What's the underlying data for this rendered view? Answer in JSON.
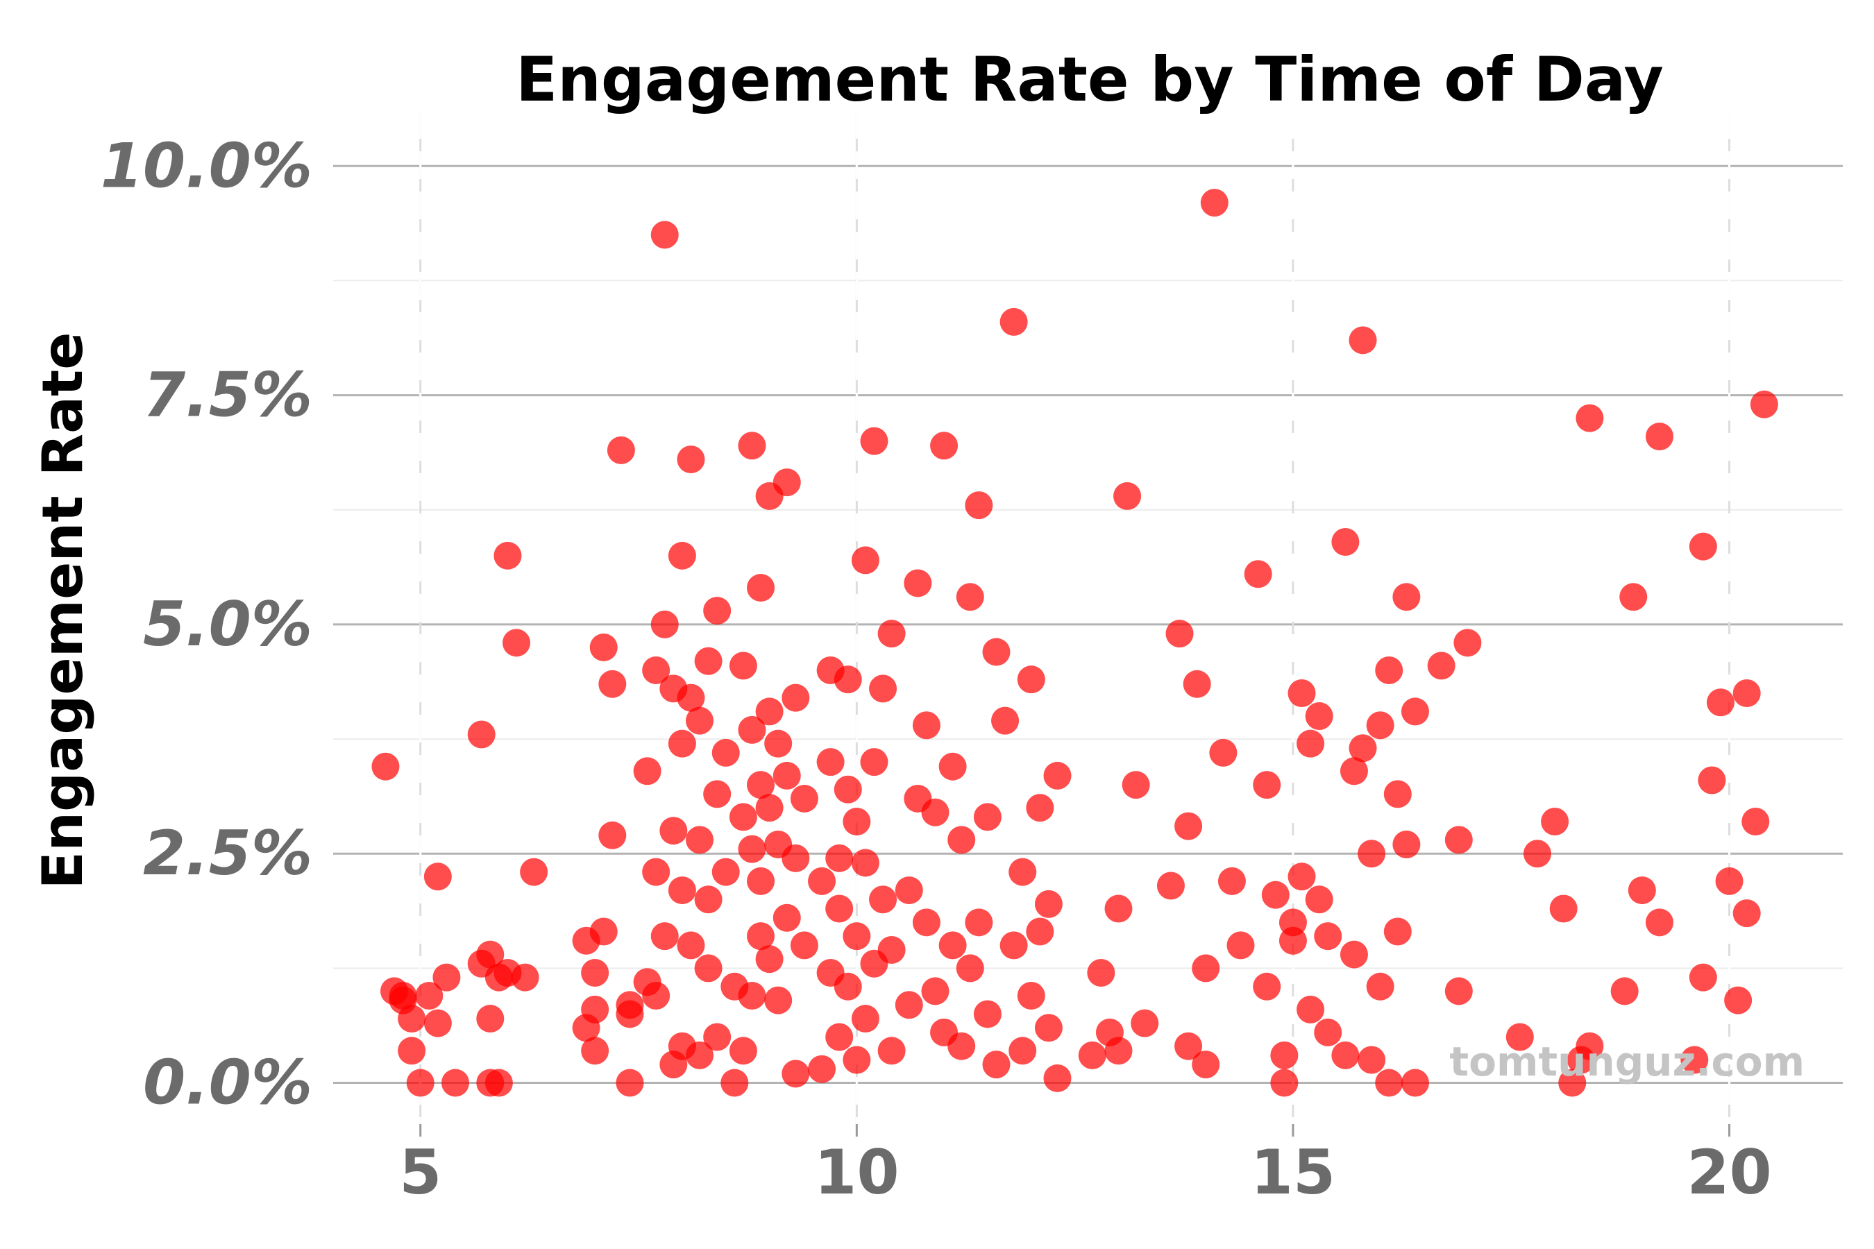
{
  "chart_data": {
    "type": "scatter",
    "title": "Engagement Rate by Time of Day",
    "xlabel": "",
    "ylabel": "Engagement Rate",
    "xlim": [
      4,
      21.3
    ],
    "ylim": [
      -0.45,
      10.6
    ],
    "x_ticks": [
      5,
      10,
      15,
      20
    ],
    "x_tick_labels": [
      "5",
      "10",
      "15",
      "20"
    ],
    "y_ticks": [
      0,
      2.5,
      5,
      7.5,
      10
    ],
    "y_tick_labels": [
      "0.0%",
      "2.5%",
      "5.0%",
      "7.5%",
      "10.0%"
    ],
    "grid": true,
    "legend": "none",
    "point_color": "#ff0000",
    "watermark": "tomtunguz.com",
    "series": [
      {
        "x": [
          4.6,
          4.7,
          4.8,
          4.8,
          4.9,
          4.9,
          5.0,
          5.1,
          5.2,
          5.2,
          5.3,
          5.4,
          5.7,
          5.7,
          5.8,
          5.8,
          5.8,
          5.9,
          5.9,
          6.0,
          6.0,
          6.1,
          6.2,
          6.3,
          6.9,
          6.9,
          7.0,
          7.0,
          7.0,
          7.1,
          7.1,
          7.2,
          7.2,
          7.3,
          7.4,
          7.4,
          7.4,
          7.6,
          7.6,
          7.7,
          7.7,
          7.7,
          7.8,
          7.8,
          7.8,
          7.9,
          7.9,
          7.9,
          8.0,
          8.0,
          8.0,
          8.0,
          8.1,
          8.1,
          8.1,
          8.2,
          8.2,
          8.2,
          8.3,
          8.3,
          8.3,
          8.4,
          8.4,
          8.4,
          8.5,
          8.5,
          8.6,
          8.6,
          8.7,
          8.7,
          8.7,
          8.8,
          8.8,
          8.8,
          8.8,
          8.9,
          8.9,
          8.9,
          8.9,
          9.0,
          9.0,
          9.0,
          9.0,
          9.1,
          9.1,
          9.1,
          9.2,
          9.2,
          9.2,
          9.3,
          9.3,
          9.3,
          9.4,
          9.4,
          9.6,
          9.6,
          9.7,
          9.7,
          9.7,
          9.8,
          9.8,
          9.8,
          9.9,
          9.9,
          9.9,
          10.0,
          10.0,
          10.0,
          10.1,
          10.1,
          10.1,
          10.2,
          10.2,
          10.2,
          10.3,
          10.3,
          10.4,
          10.4,
          10.4,
          10.6,
          10.6,
          10.7,
          10.7,
          10.8,
          10.8,
          10.9,
          10.9,
          11.0,
          11.0,
          11.1,
          11.1,
          11.2,
          11.2,
          11.3,
          11.3,
          11.4,
          11.4,
          11.5,
          11.5,
          11.6,
          11.6,
          11.7,
          11.8,
          11.8,
          11.9,
          11.9,
          12.0,
          12.0,
          12.1,
          12.1,
          12.2,
          12.2,
          12.3,
          12.3,
          12.7,
          12.8,
          12.9,
          13.0,
          13.0,
          13.1,
          13.2,
          13.3,
          13.6,
          13.7,
          13.8,
          13.8,
          13.9,
          14.0,
          14.0,
          14.1,
          14.2,
          14.3,
          14.4,
          14.6,
          14.7,
          14.7,
          14.8,
          14.9,
          14.9,
          15.0,
          15.0,
          15.1,
          15.1,
          15.2,
          15.2,
          15.3,
          15.3,
          15.4,
          15.4,
          15.6,
          15.6,
          15.7,
          15.7,
          15.8,
          15.8,
          15.9,
          15.9,
          16.0,
          16.0,
          16.1,
          16.1,
          16.2,
          16.2,
          16.3,
          16.3,
          16.4,
          16.4,
          16.7,
          16.9,
          16.9,
          17.0,
          17.6,
          17.8,
          18.0,
          18.1,
          18.2,
          18.3,
          18.4,
          18.4,
          18.8,
          18.9,
          19.0,
          19.2,
          19.2,
          19.6,
          19.7,
          19.7,
          19.8,
          19.9,
          20.0,
          20.1,
          20.2,
          20.2,
          20.3,
          20.4
        ],
        "y": [
          3.45,
          1.0,
          0.95,
          0.9,
          0.7,
          0.35,
          0.0,
          0.95,
          2.25,
          0.65,
          1.15,
          0.0,
          3.8,
          1.3,
          1.4,
          0.7,
          0.0,
          1.15,
          0.0,
          1.2,
          5.75,
          4.8,
          1.15,
          2.3,
          0.6,
          1.55,
          0.8,
          0.35,
          1.2,
          4.75,
          1.65,
          2.7,
          4.35,
          6.9,
          0.75,
          0.0,
          0.85,
          3.4,
          1.1,
          4.5,
          2.3,
          0.95,
          5.0,
          1.6,
          9.25,
          4.3,
          2.75,
          0.2,
          3.7,
          2.1,
          0.4,
          5.75,
          1.5,
          4.2,
          6.8,
          2.65,
          3.95,
          0.3,
          2.0,
          4.6,
          1.25,
          3.15,
          5.15,
          0.5,
          3.6,
          2.3,
          0.0,
          1.05,
          2.9,
          4.55,
          0.35,
          2.55,
          6.95,
          3.85,
          0.95,
          3.25,
          1.6,
          5.4,
          2.2,
          3.0,
          4.05,
          1.35,
          6.4,
          2.6,
          0.9,
          3.7,
          3.35,
          1.8,
          6.55,
          2.45,
          0.1,
          4.2,
          3.1,
          1.5,
          2.2,
          0.15,
          4.5,
          1.2,
          3.5,
          2.45,
          0.5,
          1.9,
          4.4,
          1.05,
          3.2,
          2.85,
          0.25,
          1.6,
          5.7,
          2.4,
          0.7,
          3.5,
          1.3,
          7.0,
          4.3,
          2.0,
          0.35,
          1.45,
          4.9,
          2.1,
          0.85,
          3.1,
          5.45,
          1.75,
          3.9,
          1.0,
          2.95,
          0.55,
          6.95,
          1.5,
          3.45,
          2.65,
          0.4,
          1.25,
          5.3,
          6.3,
          1.75,
          2.9,
          0.75,
          4.7,
          0.2,
          3.95,
          1.5,
          8.3,
          0.35,
          2.3,
          4.4,
          0.95,
          1.65,
          3.0,
          0.6,
          1.95,
          3.35,
          0.05,
          0.3,
          1.2,
          0.55,
          1.9,
          0.35,
          6.4,
          3.25,
          0.65,
          2.15,
          4.9,
          0.4,
          2.8,
          4.35,
          1.25,
          0.2,
          9.6,
          3.6,
          2.2,
          1.5,
          5.55,
          1.05,
          3.25,
          2.05,
          0.0,
          0.3,
          1.55,
          1.75,
          2.25,
          4.25,
          0.8,
          3.7,
          2.0,
          4.0,
          0.55,
          1.6,
          5.9,
          0.3,
          3.4,
          1.4,
          3.65,
          8.1,
          0.25,
          2.5,
          3.9,
          1.05,
          4.5,
          0.0,
          1.65,
          3.15,
          5.3,
          2.6,
          0.0,
          4.05,
          4.55,
          1.0,
          2.65,
          4.8,
          0.5,
          2.5,
          2.85,
          1.9,
          0.0,
          0.25,
          7.25,
          0.4,
          1.0,
          5.3,
          2.1,
          1.75,
          7.05,
          0.25,
          5.85,
          1.15,
          3.3,
          4.15,
          2.2,
          0.9,
          1.85,
          4.25,
          2.85,
          7.4
        ]
      }
    ]
  }
}
